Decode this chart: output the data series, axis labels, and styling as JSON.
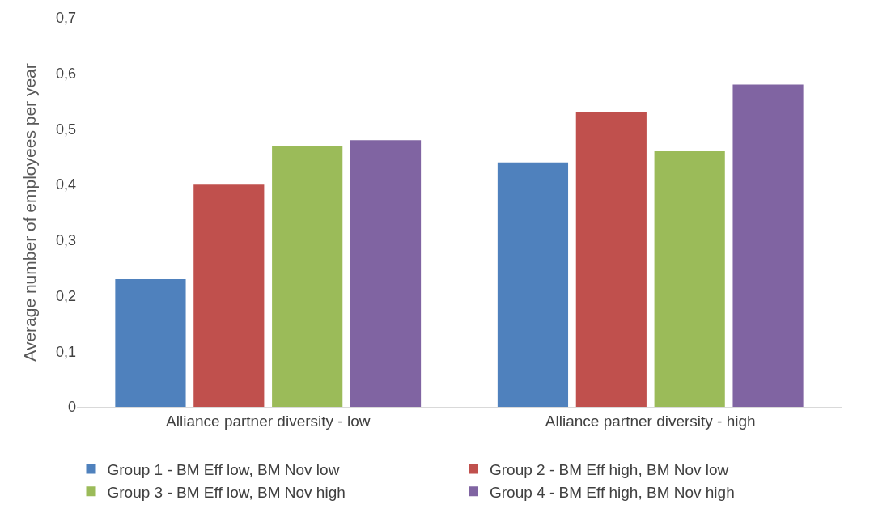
{
  "chart_data": {
    "type": "bar",
    "ylabel": "Average number of employees per year",
    "categories": [
      "Alliance partner diversity - low",
      "Alliance partner diversity - high"
    ],
    "series": [
      {
        "name": "Group 1 - BM Eff low, BM Nov low",
        "color": "#4f81bd",
        "values": [
          0.23,
          0.44
        ]
      },
      {
        "name": "Group 2 - BM Eff high, BM Nov low",
        "color": "#c0504d",
        "values": [
          0.4,
          0.53
        ]
      },
      {
        "name": "Group 3 - BM Eff low, BM Nov high",
        "color": "#9bbb59",
        "values": [
          0.47,
          0.46
        ]
      },
      {
        "name": "Group 4 - BM Eff high, BM Nov high",
        "color": "#8064a2",
        "values": [
          0.48,
          0.58
        ]
      }
    ],
    "ylim": [
      0,
      0.7
    ],
    "yticks": [
      0,
      {
        "value": 0.1,
        "label": "0,1"
      },
      {
        "value": 0.2,
        "label": "0,2"
      },
      {
        "value": 0.3,
        "label": "0,3"
      },
      {
        "value": 0.4,
        "label": "0,4"
      },
      {
        "value": 0.5,
        "label": "0,5"
      },
      {
        "value": 0.6,
        "label": "0,6"
      },
      {
        "value": 0.7,
        "label": "0,7"
      }
    ],
    "grid": false,
    "legend": "bottom"
  }
}
